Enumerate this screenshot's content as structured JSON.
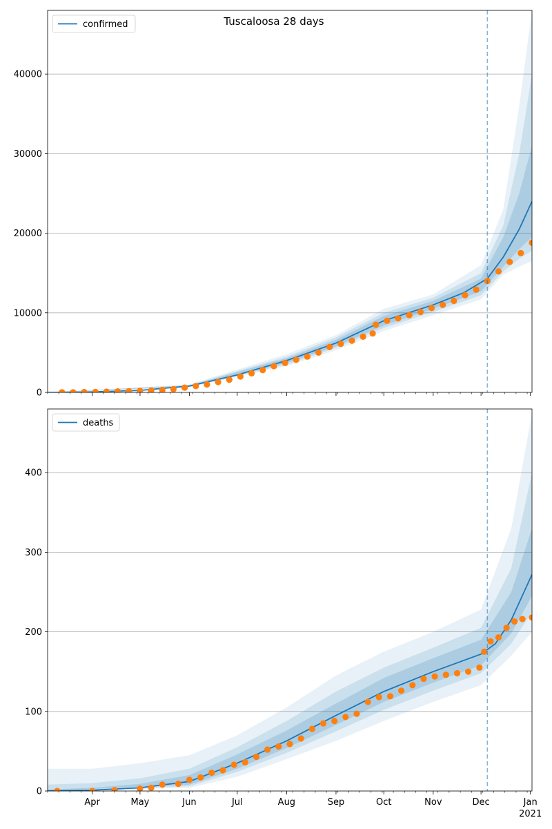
{
  "figure_title": "Tuscaloosa 28 days",
  "colors": {
    "model_line": "#1f77b4",
    "observed": "#ff7f0e",
    "band": "#1f77b4",
    "grid": "#b0b0b0",
    "vline": "#1f77b4"
  },
  "x_axis": {
    "range": [
      "2020-03-04",
      "2021-01-02"
    ],
    "major_ticks": [
      {
        "date": "2020-04-01",
        "label": "Apr"
      },
      {
        "date": "2020-05-01",
        "label": "May"
      },
      {
        "date": "2020-06-01",
        "label": "Jun"
      },
      {
        "date": "2020-07-01",
        "label": "Jul"
      },
      {
        "date": "2020-08-01",
        "label": "Aug"
      },
      {
        "date": "2020-09-01",
        "label": "Sep"
      },
      {
        "date": "2020-10-01",
        "label": "Oct"
      },
      {
        "date": "2020-11-01",
        "label": "Nov"
      },
      {
        "date": "2020-12-01",
        "label": "Dec"
      },
      {
        "date": "2021-01-01",
        "label": "Jan"
      }
    ],
    "year_label": "2021",
    "forecast_date": "2020-12-05"
  },
  "chart_data": [
    {
      "type": "line",
      "legend": "confirmed",
      "legend_position": "upper-left",
      "grid": true,
      "ylim": [
        0,
        48000
      ],
      "yticks": [
        0,
        10000,
        20000,
        30000,
        40000
      ],
      "model": [
        [
          "2020-03-04",
          0
        ],
        [
          "2020-04-01",
          60
        ],
        [
          "2020-05-01",
          250
        ],
        [
          "2020-06-01",
          800
        ],
        [
          "2020-07-01",
          2200
        ],
        [
          "2020-08-01",
          4000
        ],
        [
          "2020-09-01",
          6200
        ],
        [
          "2020-10-01",
          9000
        ],
        [
          "2020-11-01",
          11000
        ],
        [
          "2020-11-20",
          12500
        ],
        [
          "2020-12-05",
          14300
        ],
        [
          "2020-12-15",
          17000
        ],
        [
          "2020-12-25",
          20500
        ],
        [
          "2021-01-02",
          24000
        ]
      ],
      "bands": [
        {
          "upper": [
            [
              "2020-03-04",
              0
            ],
            [
              "2020-06-01",
              1000
            ],
            [
              "2020-08-01",
              4800
            ],
            [
              "2020-09-01",
              7200
            ],
            [
              "2020-10-01",
              10500
            ],
            [
              "2020-11-01",
              12300
            ],
            [
              "2020-12-01",
              16000
            ],
            [
              "2020-12-15",
              23000
            ],
            [
              "2020-12-25",
              36000
            ],
            [
              "2021-01-02",
              48000
            ]
          ],
          "lower": [
            [
              "2020-03-04",
              0
            ],
            [
              "2020-06-01",
              650
            ],
            [
              "2020-08-01",
              3300
            ],
            [
              "2020-09-01",
              5300
            ],
            [
              "2020-10-01",
              7700
            ],
            [
              "2020-11-01",
              9700
            ],
            [
              "2020-12-01",
              11700
            ],
            [
              "2020-12-15",
              14800
            ],
            [
              "2020-12-25",
              15800
            ],
            [
              "2021-01-02",
              16500
            ]
          ]
        },
        {
          "upper": [
            [
              "2020-03-04",
              0
            ],
            [
              "2020-06-01",
              920
            ],
            [
              "2020-08-01",
              4500
            ],
            [
              "2020-09-01",
              6900
            ],
            [
              "2020-10-01",
              10000
            ],
            [
              "2020-11-01",
              11900
            ],
            [
              "2020-12-01",
              15000
            ],
            [
              "2020-12-15",
              21000
            ],
            [
              "2020-12-25",
              30000
            ],
            [
              "2021-01-02",
              40000
            ]
          ],
          "lower": [
            [
              "2020-03-04",
              0
            ],
            [
              "2020-06-01",
              700
            ],
            [
              "2020-08-01",
              3500
            ],
            [
              "2020-09-01",
              5600
            ],
            [
              "2020-10-01",
              8100
            ],
            [
              "2020-11-01",
              10100
            ],
            [
              "2020-12-01",
              12200
            ],
            [
              "2020-12-15",
              15200
            ],
            [
              "2020-12-25",
              16800
            ],
            [
              "2021-01-02",
              17800
            ]
          ]
        },
        {
          "upper": [
            [
              "2020-03-04",
              0
            ],
            [
              "2020-06-01",
              870
            ],
            [
              "2020-08-01",
              4300
            ],
            [
              "2020-09-01",
              6600
            ],
            [
              "2020-10-01",
              9600
            ],
            [
              "2020-11-01",
              11500
            ],
            [
              "2020-12-01",
              14300
            ],
            [
              "2020-12-15",
              19500
            ],
            [
              "2020-12-25",
              25000
            ],
            [
              "2021-01-02",
              31000
            ]
          ],
          "lower": [
            [
              "2020-03-04",
              0
            ],
            [
              "2020-06-01",
              740
            ],
            [
              "2020-08-01",
              3700
            ],
            [
              "2020-09-01",
              5800
            ],
            [
              "2020-10-01",
              8400
            ],
            [
              "2020-11-01",
              10500
            ],
            [
              "2020-12-01",
              12700
            ],
            [
              "2020-12-15",
              15800
            ],
            [
              "2020-12-25",
              18000
            ],
            [
              "2021-01-02",
              19500
            ]
          ]
        }
      ],
      "observed": [
        [
          "2020-03-13",
          5
        ],
        [
          "2020-03-20",
          20
        ],
        [
          "2020-03-27",
          40
        ],
        [
          "2020-04-03",
          60
        ],
        [
          "2020-04-10",
          90
        ],
        [
          "2020-04-17",
          120
        ],
        [
          "2020-04-24",
          150
        ],
        [
          "2020-05-01",
          200
        ],
        [
          "2020-05-08",
          240
        ],
        [
          "2020-05-15",
          300
        ],
        [
          "2020-05-22",
          400
        ],
        [
          "2020-05-29",
          600
        ],
        [
          "2020-06-05",
          800
        ],
        [
          "2020-06-12",
          1000
        ],
        [
          "2020-06-19",
          1300
        ],
        [
          "2020-06-26",
          1600
        ],
        [
          "2020-07-03",
          2000
        ],
        [
          "2020-07-10",
          2400
        ],
        [
          "2020-07-17",
          2800
        ],
        [
          "2020-07-24",
          3300
        ],
        [
          "2020-07-31",
          3700
        ],
        [
          "2020-08-07",
          4100
        ],
        [
          "2020-08-14",
          4500
        ],
        [
          "2020-08-21",
          5000
        ],
        [
          "2020-08-28",
          5700
        ],
        [
          "2020-09-04",
          6100
        ],
        [
          "2020-09-11",
          6500
        ],
        [
          "2020-09-18",
          7000
        ],
        [
          "2020-09-24",
          7400
        ],
        [
          "2020-09-26",
          8500
        ],
        [
          "2020-10-03",
          9000
        ],
        [
          "2020-10-10",
          9300
        ],
        [
          "2020-10-17",
          9700
        ],
        [
          "2020-10-24",
          10100
        ],
        [
          "2020-10-31",
          10600
        ],
        [
          "2020-11-07",
          11000
        ],
        [
          "2020-11-14",
          11500
        ],
        [
          "2020-11-21",
          12200
        ],
        [
          "2020-11-28",
          12900
        ],
        [
          "2020-12-05",
          14000
        ],
        [
          "2020-12-12",
          15200
        ],
        [
          "2020-12-19",
          16400
        ],
        [
          "2020-12-26",
          17500
        ],
        [
          "2021-01-02",
          18800
        ]
      ]
    },
    {
      "type": "line",
      "legend": "deaths",
      "legend_position": "upper-left",
      "grid": true,
      "ylim": [
        0,
        480
      ],
      "yticks": [
        0,
        100,
        200,
        300,
        400
      ],
      "model": [
        [
          "2020-03-04",
          0
        ],
        [
          "2020-04-01",
          1
        ],
        [
          "2020-05-01",
          4
        ],
        [
          "2020-06-01",
          12
        ],
        [
          "2020-07-01",
          35
        ],
        [
          "2020-08-01",
          63
        ],
        [
          "2020-09-01",
          95
        ],
        [
          "2020-10-01",
          125
        ],
        [
          "2020-11-01",
          150
        ],
        [
          "2020-12-01",
          172
        ],
        [
          "2020-12-10",
          185
        ],
        [
          "2020-12-20",
          215
        ],
        [
          "2021-01-02",
          272
        ]
      ],
      "bands": [
        {
          "upper": [
            [
              "2020-03-04",
              28
            ],
            [
              "2020-04-01",
              28
            ],
            [
              "2020-05-01",
              35
            ],
            [
              "2020-06-01",
              45
            ],
            [
              "2020-07-01",
              70
            ],
            [
              "2020-08-01",
              105
            ],
            [
              "2020-09-01",
              145
            ],
            [
              "2020-10-01",
              175
            ],
            [
              "2020-11-01",
              200
            ],
            [
              "2020-12-01",
              228
            ],
            [
              "2020-12-20",
              330
            ],
            [
              "2021-01-02",
              475
            ]
          ],
          "lower": [
            [
              "2020-03-04",
              0
            ],
            [
              "2020-06-01",
              4
            ],
            [
              "2020-07-01",
              18
            ],
            [
              "2020-08-01",
              40
            ],
            [
              "2020-09-01",
              63
            ],
            [
              "2020-10-01",
              88
            ],
            [
              "2020-11-01",
              112
            ],
            [
              "2020-12-01",
              133
            ],
            [
              "2020-12-20",
              170
            ],
            [
              "2021-01-02",
              200
            ]
          ]
        },
        {
          "upper": [
            [
              "2020-03-04",
              8
            ],
            [
              "2020-04-01",
              10
            ],
            [
              "2020-05-01",
              16
            ],
            [
              "2020-06-01",
              28
            ],
            [
              "2020-07-01",
              55
            ],
            [
              "2020-08-01",
              88
            ],
            [
              "2020-09-01",
              125
            ],
            [
              "2020-10-01",
              155
            ],
            [
              "2020-11-01",
              180
            ],
            [
              "2020-12-01",
              205
            ],
            [
              "2020-12-20",
              280
            ],
            [
              "2021-01-02",
              400
            ]
          ],
          "lower": [
            [
              "2020-03-04",
              0
            ],
            [
              "2020-06-01",
              6
            ],
            [
              "2020-07-01",
              24
            ],
            [
              "2020-08-01",
              48
            ],
            [
              "2020-09-01",
              75
            ],
            [
              "2020-10-01",
              102
            ],
            [
              "2020-11-01",
              126
            ],
            [
              "2020-12-01",
              148
            ],
            [
              "2020-12-20",
              185
            ],
            [
              "2021-01-02",
              225
            ]
          ]
        },
        {
          "upper": [
            [
              "2020-03-04",
              2
            ],
            [
              "2020-04-01",
              4
            ],
            [
              "2020-05-01",
              9
            ],
            [
              "2020-06-01",
              20
            ],
            [
              "2020-07-01",
              46
            ],
            [
              "2020-08-01",
              76
            ],
            [
              "2020-09-01",
              110
            ],
            [
              "2020-10-01",
              142
            ],
            [
              "2020-11-01",
              167
            ],
            [
              "2020-12-01",
              190
            ],
            [
              "2020-12-20",
              250
            ],
            [
              "2021-01-02",
              330
            ]
          ],
          "lower": [
            [
              "2020-03-04",
              0
            ],
            [
              "2020-06-01",
              8
            ],
            [
              "2020-07-01",
              28
            ],
            [
              "2020-08-01",
              54
            ],
            [
              "2020-09-01",
              83
            ],
            [
              "2020-10-01",
              112
            ],
            [
              "2020-11-01",
              136
            ],
            [
              "2020-12-01",
              158
            ],
            [
              "2020-12-20",
              198
            ],
            [
              "2021-01-02",
              245
            ]
          ]
        }
      ],
      "observed": [
        [
          "2020-03-10",
          0
        ],
        [
          "2020-04-01",
          0
        ],
        [
          "2020-04-15",
          1
        ],
        [
          "2020-05-01",
          3
        ],
        [
          "2020-05-08",
          4
        ],
        [
          "2020-05-15",
          8
        ],
        [
          "2020-05-25",
          9
        ],
        [
          "2020-06-01",
          14
        ],
        [
          "2020-06-08",
          17
        ],
        [
          "2020-06-15",
          23
        ],
        [
          "2020-06-22",
          26
        ],
        [
          "2020-06-29",
          33
        ],
        [
          "2020-07-06",
          36
        ],
        [
          "2020-07-13",
          43
        ],
        [
          "2020-07-20",
          52
        ],
        [
          "2020-07-27",
          56
        ],
        [
          "2020-08-03",
          59
        ],
        [
          "2020-08-10",
          66
        ],
        [
          "2020-08-17",
          78
        ],
        [
          "2020-08-24",
          85
        ],
        [
          "2020-08-31",
          88
        ],
        [
          "2020-09-07",
          93
        ],
        [
          "2020-09-14",
          97
        ],
        [
          "2020-09-21",
          112
        ],
        [
          "2020-09-28",
          118
        ],
        [
          "2020-10-05",
          119
        ],
        [
          "2020-10-12",
          126
        ],
        [
          "2020-10-19",
          133
        ],
        [
          "2020-10-26",
          141
        ],
        [
          "2020-11-02",
          144
        ],
        [
          "2020-11-09",
          146
        ],
        [
          "2020-11-16",
          148
        ],
        [
          "2020-11-23",
          150
        ],
        [
          "2020-11-30",
          155
        ],
        [
          "2020-12-03",
          175
        ],
        [
          "2020-12-07",
          188
        ],
        [
          "2020-12-12",
          193
        ],
        [
          "2020-12-17",
          205
        ],
        [
          "2020-12-22",
          213
        ],
        [
          "2020-12-27",
          216
        ],
        [
          "2021-01-02",
          218
        ]
      ]
    }
  ]
}
